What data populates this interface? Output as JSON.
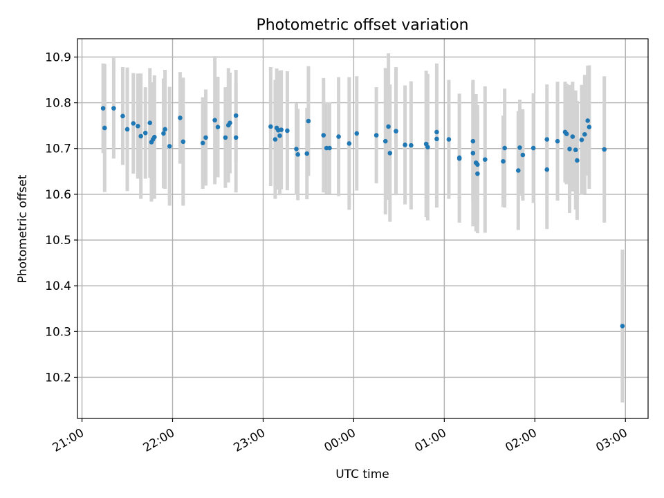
{
  "chart_data": {
    "type": "scatter",
    "title": "Photometric offset variation",
    "xlabel": "UTC time",
    "ylabel": "Photometric offset",
    "grid": true,
    "y_ticks": [
      "10.2",
      "10.3",
      "10.4",
      "10.5",
      "10.6",
      "10.7",
      "10.8",
      "10.9"
    ],
    "y_tick_values": [
      10.2,
      10.3,
      10.4,
      10.5,
      10.6,
      10.7,
      10.8,
      10.9
    ],
    "ylim": [
      10.11,
      10.94
    ],
    "x_ticks": [
      "21:00",
      "22:00",
      "23:00",
      "00:00",
      "01:00",
      "02:00",
      "03:00"
    ],
    "x_tick_hours": [
      21,
      22,
      23,
      24,
      25,
      26,
      27
    ],
    "xlim": [
      "20:57",
      "03:15"
    ],
    "colors": {
      "marker": "#1f77b4",
      "errorbar": "#d3d3d3"
    },
    "series": [
      {
        "points": [
          [
            "21:14",
            10.788,
            0.098
          ],
          [
            "21:15",
            10.745,
            0.14
          ],
          [
            "21:21",
            10.788,
            0.11
          ],
          [
            "21:27",
            10.771,
            0.107
          ],
          [
            "21:30",
            10.742,
            0.135
          ],
          [
            "21:34",
            10.755,
            0.11
          ],
          [
            "21:37",
            10.749,
            0.115
          ],
          [
            "21:39",
            10.727,
            0.137
          ],
          [
            "21:42",
            10.734,
            0.1
          ],
          [
            "21:45",
            10.756,
            0.12
          ],
          [
            "21:46",
            10.714,
            0.13
          ],
          [
            "21:47",
            10.72,
            0.125
          ],
          [
            "21:48",
            10.725,
            0.135
          ],
          [
            "21:54",
            10.733,
            0.12
          ],
          [
            "21:55",
            10.742,
            0.13
          ],
          [
            "21:58",
            10.705,
            0.13
          ],
          [
            "22:05",
            10.767,
            0.1
          ],
          [
            "22:07",
            10.715,
            0.14
          ],
          [
            "22:20",
            10.712,
            0.1
          ],
          [
            "22:22",
            10.724,
            0.105
          ],
          [
            "22:28",
            10.762,
            0.14
          ],
          [
            "22:30",
            10.747,
            0.11
          ],
          [
            "22:35",
            10.724,
            0.11
          ],
          [
            "22:37",
            10.751,
            0.125
          ],
          [
            "22:38",
            10.756,
            0.11
          ],
          [
            "22:42",
            10.772,
            0.1
          ],
          [
            "22:42",
            10.724,
            0.12
          ],
          [
            "23:05",
            10.748,
            0.13
          ],
          [
            "23:08",
            10.72,
            0.13
          ],
          [
            "23:09",
            10.745,
            0.13
          ],
          [
            "23:10",
            10.74,
            0.13
          ],
          [
            "23:11",
            10.728,
            0.13
          ],
          [
            "23:12",
            10.741,
            0.13
          ],
          [
            "23:16",
            10.739,
            0.13
          ],
          [
            "23:22",
            10.699,
            0.1
          ],
          [
            "23:23",
            10.687,
            0.1
          ],
          [
            "23:29",
            10.689,
            0.1
          ],
          [
            "23:30",
            10.76,
            0.12
          ],
          [
            "23:40",
            10.729,
            0.125
          ],
          [
            "23:42",
            10.701,
            0.1
          ],
          [
            "23:44",
            10.701,
            0.1
          ],
          [
            "23:50",
            10.726,
            0.13
          ],
          [
            "23:57",
            10.711,
            0.145
          ],
          [
            "00:02",
            10.733,
            0.125
          ],
          [
            "00:15",
            10.729,
            0.105
          ],
          [
            "00:21",
            10.716,
            0.16
          ],
          [
            "00:23",
            10.748,
            0.16
          ],
          [
            "00:24",
            10.69,
            0.15
          ],
          [
            "00:28",
            10.738,
            0.14
          ],
          [
            "00:34",
            10.708,
            0.13
          ],
          [
            "00:38",
            10.707,
            0.14
          ],
          [
            "00:48",
            10.71,
            0.16
          ],
          [
            "00:49",
            10.703,
            0.16
          ],
          [
            "00:55",
            10.721,
            0.15
          ],
          [
            "00:55",
            10.736,
            0.15
          ],
          [
            "01:03",
            10.72,
            0.13
          ],
          [
            "01:10",
            10.68,
            0.14
          ],
          [
            "01:10",
            10.678,
            0.14
          ],
          [
            "01:19",
            10.716,
            0.13
          ],
          [
            "01:19",
            10.69,
            0.16
          ],
          [
            "01:21",
            10.669,
            0.15
          ],
          [
            "01:22",
            10.645,
            0.13
          ],
          [
            "01:22",
            10.665,
            0.13
          ],
          [
            "01:27",
            10.676,
            0.16
          ],
          [
            "01:39",
            10.672,
            0.1
          ],
          [
            "01:40",
            10.701,
            0.13
          ],
          [
            "01:49",
            10.652,
            0.13
          ],
          [
            "01:50",
            10.702,
            0.105
          ],
          [
            "01:52",
            10.686,
            0.1
          ],
          [
            "01:59",
            10.701,
            0.12
          ],
          [
            "02:08",
            10.654,
            0.13
          ],
          [
            "02:08",
            10.72,
            0.12
          ],
          [
            "02:15",
            10.716,
            0.13
          ],
          [
            "02:20",
            10.736,
            0.11
          ],
          [
            "02:21",
            10.732,
            0.11
          ],
          [
            "02:23",
            10.699,
            0.14
          ],
          [
            "02:25",
            10.726,
            0.12
          ],
          [
            "02:27",
            10.697,
            0.13
          ],
          [
            "02:28",
            10.674,
            0.13
          ],
          [
            "02:31",
            10.719,
            0.12
          ],
          [
            "02:33",
            10.731,
            0.13
          ],
          [
            "02:35",
            10.761,
            0.12
          ],
          [
            "02:36",
            10.747,
            0.135
          ],
          [
            "02:46",
            10.698,
            0.16
          ],
          [
            "02:58",
            10.312,
            0.167
          ]
        ]
      }
    ]
  }
}
